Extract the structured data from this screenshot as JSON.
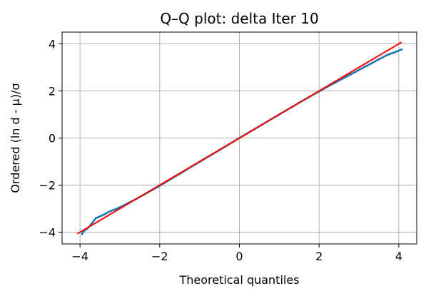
{
  "chart_data": {
    "type": "scatter",
    "title": "Q–Q plot: delta Iter 10",
    "xlabel": "Theoretical quantiles",
    "ylabel": "Ordered (ln d - μ)/σ",
    "xlim": [
      -4.45,
      4.45
    ],
    "ylim": [
      -4.5,
      4.5
    ],
    "xticks": [
      -4,
      -2,
      0,
      2,
      4
    ],
    "yticks": [
      -4,
      -2,
      0,
      2,
      4
    ],
    "xtick_labels": [
      "−4",
      "−2",
      "0",
      "2",
      "4"
    ],
    "ytick_labels": [
      "−4",
      "−2",
      "0",
      "2",
      "4"
    ],
    "grid": true,
    "series": [
      {
        "kind": "points",
        "color": "#1f77b4",
        "x": [
          -3.95,
          -3.9,
          -3.82,
          -3.76,
          -3.7,
          -3.6,
          -3.55,
          -3.5,
          -3.45,
          -3.4,
          -3.35,
          -3.3,
          -3.2,
          -3.1,
          -3.0,
          -2.9,
          -2.8,
          -2.6,
          -2.4,
          -2.2,
          -2.0,
          -1.5,
          -1.0,
          -0.5,
          0.0,
          0.5,
          1.0,
          1.5,
          2.0,
          2.2,
          2.4,
          2.6,
          2.8,
          2.9,
          3.0,
          3.1,
          3.2,
          3.3,
          3.4,
          3.5,
          3.6,
          3.7,
          3.76,
          3.82,
          3.88,
          3.95,
          4.07
        ],
        "y": [
          -4.08,
          -3.95,
          -3.85,
          -3.75,
          -3.62,
          -3.4,
          -3.37,
          -3.33,
          -3.29,
          -3.25,
          -3.21,
          -3.16,
          -3.08,
          -3.02,
          -2.94,
          -2.86,
          -2.77,
          -2.6,
          -2.41,
          -2.22,
          -2.03,
          -1.52,
          -1.01,
          -0.51,
          0.0,
          0.5,
          1.0,
          1.5,
          1.98,
          2.17,
          2.35,
          2.53,
          2.71,
          2.8,
          2.89,
          2.98,
          3.07,
          3.16,
          3.25,
          3.34,
          3.43,
          3.52,
          3.56,
          3.6,
          3.63,
          3.68,
          3.76
        ]
      },
      {
        "kind": "reference-line",
        "color": "#ff0000",
        "x": [
          -4.07,
          4.07
        ],
        "y": [
          -4.07,
          4.07
        ]
      }
    ]
  }
}
